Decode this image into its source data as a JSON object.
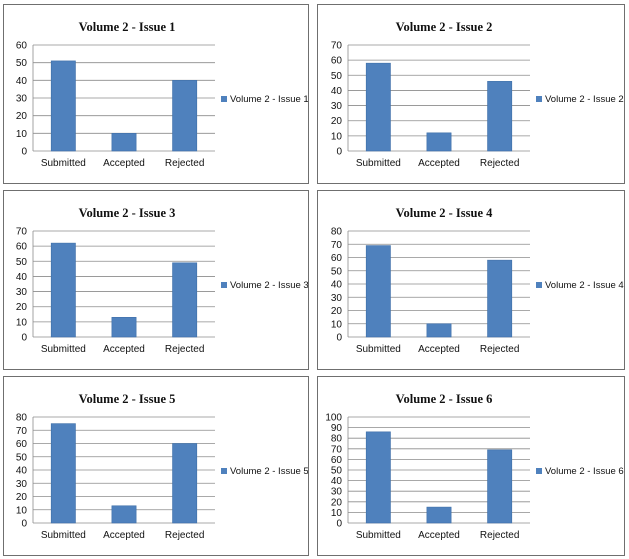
{
  "chart_data": [
    {
      "type": "bar",
      "title": "Volume 2 - Issue  1",
      "categories": [
        "Submitted",
        "Accepted",
        "Rejected"
      ],
      "series": [
        {
          "name": "Volume 2 - Issue 1",
          "values": [
            51,
            10,
            40
          ]
        }
      ],
      "ylim": [
        0,
        60
      ],
      "yticks": [
        0,
        10,
        20,
        30,
        40,
        50,
        60
      ],
      "grid": true,
      "legend": "right"
    },
    {
      "type": "bar",
      "title": "Volume 2 - Issue  2",
      "categories": [
        "Submitted",
        "Accepted",
        "Rejected"
      ],
      "series": [
        {
          "name": "Volume 2 - Issue 2",
          "values": [
            58,
            12,
            46
          ]
        }
      ],
      "ylim": [
        0,
        70
      ],
      "yticks": [
        0,
        10,
        20,
        30,
        40,
        50,
        60,
        70
      ],
      "grid": true,
      "legend": "right"
    },
    {
      "type": "bar",
      "title": "Volume 2 - Issue  3",
      "categories": [
        "Submitted",
        "Accepted",
        "Rejected"
      ],
      "series": [
        {
          "name": "Volume 2 - Issue 3",
          "values": [
            62,
            13,
            49
          ]
        }
      ],
      "ylim": [
        0,
        70
      ],
      "yticks": [
        0,
        10,
        20,
        30,
        40,
        50,
        60,
        70
      ],
      "grid": true,
      "legend": "right"
    },
    {
      "type": "bar",
      "title": "Volume 2 - Issue  4",
      "categories": [
        "Submitted",
        "Accepted",
        "Rejected"
      ],
      "series": [
        {
          "name": "Volume 2 - Issue 4",
          "values": [
            69,
            10,
            58
          ]
        }
      ],
      "ylim": [
        0,
        80
      ],
      "yticks": [
        0,
        10,
        20,
        30,
        40,
        50,
        60,
        70,
        80
      ],
      "grid": true,
      "legend": "right"
    },
    {
      "type": "bar",
      "title": "Volume 2 - Issue  5",
      "categories": [
        "Submitted",
        "Accepted",
        "Rejected"
      ],
      "series": [
        {
          "name": "Volume 2 - Issue 5",
          "values": [
            75,
            13,
            60
          ]
        }
      ],
      "ylim": [
        0,
        80
      ],
      "yticks": [
        0,
        10,
        20,
        30,
        40,
        50,
        60,
        70,
        80
      ],
      "grid": true,
      "legend": "right"
    },
    {
      "type": "bar",
      "title": "Volume 2 - Issue  6",
      "categories": [
        "Submitted",
        "Accepted",
        "Rejected"
      ],
      "series": [
        {
          "name": "Volume 2 - Issue 6",
          "values": [
            86,
            15,
            69
          ]
        }
      ],
      "ylim": [
        0,
        100
      ],
      "yticks": [
        0,
        10,
        20,
        30,
        40,
        50,
        60,
        70,
        80,
        90,
        100
      ],
      "grid": true,
      "legend": "right"
    }
  ],
  "colors": {
    "bar": "#4f81bd",
    "grid": "#8c8c8c",
    "border": "#6f6f6f"
  }
}
